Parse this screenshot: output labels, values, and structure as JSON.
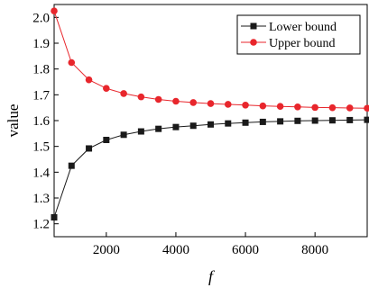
{
  "chart_data": {
    "type": "line",
    "xlabel": "f",
    "ylabel": "value",
    "xlim": [
      500,
      9500
    ],
    "ylim": [
      1.15,
      2.05
    ],
    "xticks": [
      2000,
      4000,
      6000,
      8000
    ],
    "yticks": [
      1.2,
      1.3,
      1.4,
      1.5,
      1.6,
      1.7,
      1.8,
      1.9,
      2.0
    ],
    "ytick_labels": [
      "1.2",
      "1.3",
      "1.4",
      "1.5",
      "1.6",
      "1.7",
      "1.8",
      "1.9",
      "2.0"
    ],
    "grid": false,
    "legend_position": "top-right",
    "x": [
      500,
      1000,
      1500,
      2000,
      2500,
      3000,
      3500,
      4000,
      4500,
      5000,
      5500,
      6000,
      6500,
      7000,
      7500,
      8000,
      8500,
      9000,
      9500
    ],
    "series": [
      {
        "name": "Lower bound",
        "color": "#1a1a1a",
        "marker": "square",
        "values": [
          1.225,
          1.425,
          1.492,
          1.525,
          1.545,
          1.558,
          1.568,
          1.575,
          1.58,
          1.585,
          1.589,
          1.592,
          1.595,
          1.597,
          1.599,
          1.6,
          1.601,
          1.602,
          1.603
        ]
      },
      {
        "name": "Upper bound",
        "color": "#e8262c",
        "marker": "circle",
        "values": [
          2.025,
          1.825,
          1.758,
          1.725,
          1.705,
          1.692,
          1.682,
          1.675,
          1.67,
          1.666,
          1.663,
          1.66,
          1.657,
          1.655,
          1.653,
          1.651,
          1.65,
          1.649,
          1.648
        ]
      }
    ]
  }
}
